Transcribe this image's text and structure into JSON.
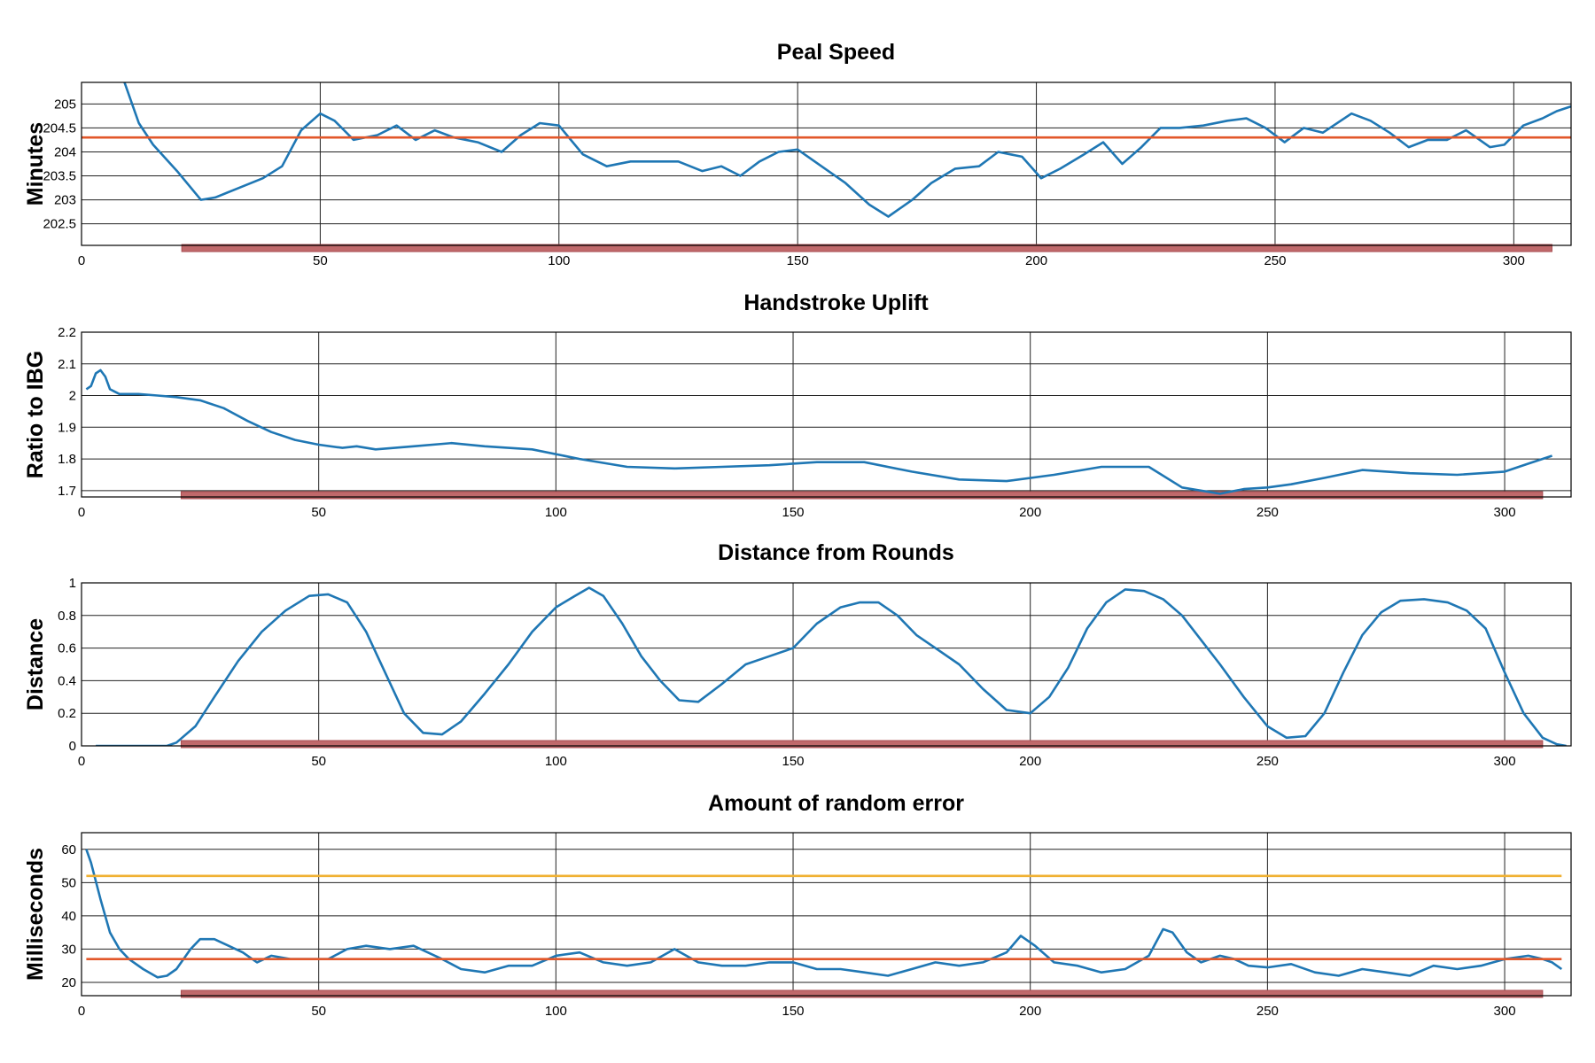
{
  "colors": {
    "trace": "#1f77b4",
    "mean": "#e2572a",
    "threshold": "#f0b132",
    "range_bar": "#c0696b",
    "axis": "#000000",
    "grid": "#222222"
  },
  "chart_data": [
    {
      "type": "line",
      "title": "Peal Speed",
      "xlabel": "",
      "ylabel": "Minutes",
      "xlim": [
        0,
        312
      ],
      "ylim": [
        202.05,
        205.45
      ],
      "xticks": [
        0,
        50,
        100,
        150,
        200,
        250,
        300
      ],
      "yticks": [
        202.5,
        203,
        203.5,
        204,
        204.5,
        205
      ],
      "ytick_labels": [
        "202.5",
        "203",
        "203.5",
        "204",
        "204.5",
        "205"
      ],
      "grid": true,
      "series": [
        {
          "role": "trace",
          "x": [
            9,
            12,
            15,
            20,
            25,
            28,
            33,
            38,
            42,
            46,
            50,
            53,
            57,
            62,
            66,
            70,
            74,
            78,
            83,
            88,
            92,
            96,
            100,
            105,
            110,
            115,
            120,
            125,
            130,
            134,
            138,
            142,
            146,
            150,
            155,
            160,
            165,
            169,
            174,
            178,
            183,
            188,
            192,
            197,
            201,
            205,
            210,
            214,
            218,
            222,
            226,
            230,
            235,
            240,
            244,
            248,
            252,
            256,
            260,
            266,
            270,
            274,
            278,
            282,
            286,
            290,
            295,
            298,
            302,
            306,
            309,
            312
          ],
          "y": [
            205.45,
            204.6,
            204.15,
            203.6,
            203.0,
            203.05,
            203.25,
            203.45,
            203.7,
            204.45,
            204.8,
            204.65,
            204.25,
            204.35,
            204.55,
            204.25,
            204.45,
            204.3,
            204.2,
            204.0,
            204.35,
            204.6,
            204.55,
            203.95,
            203.7,
            203.8,
            203.8,
            203.8,
            203.6,
            203.7,
            203.5,
            203.8,
            204.0,
            204.05,
            203.7,
            203.35,
            202.9,
            202.65,
            203.0,
            203.35,
            203.65,
            203.7,
            204.0,
            203.9,
            203.45,
            203.65,
            203.95,
            204.2,
            203.75,
            204.1,
            204.5,
            204.5,
            204.55,
            204.65,
            204.7,
            204.5,
            204.2,
            204.5,
            204.4,
            204.8,
            204.65,
            204.4,
            204.1,
            204.25,
            204.25,
            204.45,
            204.1,
            204.15,
            204.55,
            204.7,
            204.85,
            204.95
          ]
        },
        {
          "role": "mean",
          "x": [
            0,
            312
          ],
          "y": [
            204.3,
            204.3
          ]
        }
      ],
      "range_bar": [
        21,
        308
      ]
    },
    {
      "type": "line",
      "title": "Handstroke Uplift",
      "xlabel": "",
      "ylabel": "Ratio to IBG",
      "xlim": [
        0,
        314
      ],
      "ylim": [
        1.68,
        2.2
      ],
      "xticks": [
        0,
        50,
        100,
        150,
        200,
        250,
        300
      ],
      "yticks": [
        1.7,
        1.8,
        1.9,
        2,
        2.1,
        2.2
      ],
      "ytick_labels": [
        "1.7",
        "1.8",
        "1.9",
        "2",
        "2.1",
        "2.2"
      ],
      "grid": true,
      "series": [
        {
          "role": "trace",
          "x": [
            1,
            2,
            3,
            4,
            5,
            6,
            8,
            12,
            16,
            20,
            25,
            30,
            35,
            40,
            45,
            50,
            55,
            58,
            62,
            70,
            78,
            85,
            95,
            105,
            115,
            125,
            135,
            145,
            155,
            165,
            175,
            185,
            195,
            205,
            215,
            225,
            232,
            240,
            245,
            250,
            255,
            262,
            270,
            280,
            290,
            300,
            305,
            310
          ],
          "y": [
            2.02,
            2.03,
            2.07,
            2.08,
            2.06,
            2.02,
            2.005,
            2.005,
            2.0,
            1.995,
            1.985,
            1.96,
            1.92,
            1.885,
            1.86,
            1.845,
            1.835,
            1.84,
            1.83,
            1.84,
            1.85,
            1.84,
            1.83,
            1.8,
            1.775,
            1.77,
            1.775,
            1.78,
            1.79,
            1.79,
            1.76,
            1.735,
            1.73,
            1.75,
            1.775,
            1.775,
            1.71,
            1.69,
            1.705,
            1.71,
            1.72,
            1.74,
            1.765,
            1.755,
            1.75,
            1.76,
            1.785,
            1.81
          ]
        }
      ],
      "range_bar": [
        21,
        308
      ]
    },
    {
      "type": "line",
      "title": "Distance from Rounds",
      "xlabel": "",
      "ylabel": "Distance",
      "xlim": [
        0,
        314
      ],
      "ylim": [
        0,
        1
      ],
      "xticks": [
        0,
        50,
        100,
        150,
        200,
        250,
        300
      ],
      "yticks": [
        0,
        0.2,
        0.4,
        0.6,
        0.8,
        1
      ],
      "ytick_labels": [
        "0",
        "0.2",
        "0.4",
        "0.6",
        "0.8",
        "1"
      ],
      "grid": true,
      "series": [
        {
          "role": "trace",
          "x": [
            3,
            10,
            18,
            20,
            24,
            28,
            33,
            38,
            43,
            48,
            52,
            56,
            60,
            64,
            68,
            72,
            76,
            80,
            85,
            90,
            95,
            100,
            104,
            107,
            110,
            114,
            118,
            122,
            126,
            130,
            135,
            140,
            145,
            150,
            155,
            160,
            164,
            168,
            172,
            176,
            180,
            185,
            190,
            195,
            200,
            204,
            208,
            212,
            216,
            220,
            224,
            228,
            232,
            236,
            240,
            245,
            250,
            254,
            258,
            262,
            266,
            270,
            274,
            278,
            283,
            288,
            292,
            296,
            300,
            304,
            308,
            311,
            313
          ],
          "y": [
            0,
            0,
            0,
            0.02,
            0.12,
            0.3,
            0.52,
            0.7,
            0.83,
            0.92,
            0.93,
            0.88,
            0.7,
            0.45,
            0.2,
            0.08,
            0.07,
            0.15,
            0.32,
            0.5,
            0.7,
            0.85,
            0.92,
            0.97,
            0.92,
            0.75,
            0.55,
            0.4,
            0.28,
            0.27,
            0.38,
            0.5,
            0.55,
            0.6,
            0.75,
            0.85,
            0.88,
            0.88,
            0.8,
            0.68,
            0.6,
            0.5,
            0.35,
            0.22,
            0.2,
            0.3,
            0.48,
            0.72,
            0.88,
            0.96,
            0.95,
            0.9,
            0.8,
            0.65,
            0.5,
            0.3,
            0.12,
            0.05,
            0.06,
            0.2,
            0.45,
            0.68,
            0.82,
            0.89,
            0.9,
            0.88,
            0.83,
            0.72,
            0.45,
            0.2,
            0.05,
            0.01,
            0.0
          ]
        }
      ],
      "range_bar": [
        21,
        308
      ]
    },
    {
      "type": "line",
      "title": "Amount of random error",
      "xlabel": "",
      "ylabel": "Milliseconds",
      "xlim": [
        0,
        314
      ],
      "ylim": [
        16,
        65
      ],
      "xticks": [
        0,
        50,
        100,
        150,
        200,
        250,
        300
      ],
      "yticks": [
        20,
        30,
        40,
        50,
        60
      ],
      "ytick_labels": [
        "20",
        "30",
        "40",
        "50",
        "60"
      ],
      "grid": true,
      "series": [
        {
          "role": "trace",
          "x": [
            1,
            2,
            4,
            6,
            8,
            10,
            13,
            16,
            18,
            20,
            23,
            25,
            28,
            31,
            34,
            37,
            40,
            44,
            48,
            52,
            56,
            60,
            65,
            70,
            73,
            76,
            80,
            85,
            90,
            95,
            100,
            105,
            110,
            115,
            120,
            125,
            130,
            135,
            140,
            145,
            150,
            155,
            160,
            165,
            170,
            175,
            180,
            185,
            190,
            195,
            198,
            201,
            205,
            210,
            215,
            220,
            225,
            228,
            230,
            233,
            236,
            240,
            243,
            246,
            250,
            255,
            260,
            265,
            270,
            275,
            280,
            285,
            290,
            295,
            300,
            305,
            308,
            310,
            312
          ],
          "y": [
            60,
            56,
            45,
            35,
            30,
            27,
            24,
            21.5,
            22,
            24,
            30,
            33,
            33,
            31,
            29,
            26,
            28,
            27,
            27,
            27,
            30,
            31,
            30,
            31,
            29,
            27,
            24,
            23,
            25,
            25,
            28,
            29,
            26,
            25,
            26,
            30,
            26,
            25,
            25,
            26,
            26,
            24,
            24,
            23,
            22,
            24,
            26,
            25,
            26,
            29,
            34,
            31,
            26,
            25,
            23,
            24,
            28,
            36,
            35,
            29,
            26,
            28,
            27,
            25,
            24.5,
            25.5,
            23,
            22,
            24,
            23,
            22,
            25,
            24,
            25,
            27,
            28,
            27,
            26,
            24
          ]
        },
        {
          "role": "mean",
          "x": [
            1,
            312
          ],
          "y": [
            27,
            27
          ]
        },
        {
          "role": "threshold",
          "x": [
            1,
            312
          ],
          "y": [
            52,
            52
          ]
        }
      ],
      "range_bar": [
        21,
        308
      ]
    }
  ]
}
